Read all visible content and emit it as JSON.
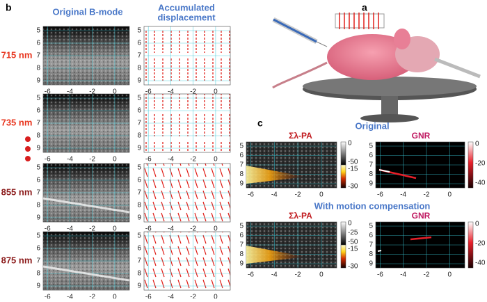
{
  "panel_b": {
    "label": "b",
    "bmode_title": "Original B-mode",
    "displacement_title": [
      "Accumulated",
      "displacement"
    ],
    "rows": [
      "715 nm",
      "735 nm",
      "855 nm",
      "875 nm"
    ],
    "xticks": [
      "-6",
      "-4",
      "-2",
      "0"
    ],
    "yticks": [
      "5",
      "6",
      "7",
      "8",
      "9"
    ]
  },
  "panel_a": {
    "label": "a"
  },
  "panel_c": {
    "label": "c",
    "sections": [
      {
        "title": "Original",
        "pa_title": "Σλ-PA",
        "gnr_title": "GNR",
        "pa_colorbar_gray": [
          "0",
          "-50"
        ],
        "pa_colorbar_hot": [
          "-15",
          "-30"
        ],
        "gnr_colorbar": [
          "0",
          "-20",
          "-40"
        ]
      },
      {
        "title": "With motion compensation",
        "pa_title": "Σλ-PA",
        "gnr_title": "GNR",
        "pa_colorbar_gray": [
          "0",
          "-25",
          "-50"
        ],
        "pa_colorbar_hot": [
          "-15",
          "-30"
        ],
        "gnr_colorbar": [
          "0",
          "-20",
          "-40"
        ]
      }
    ],
    "xticks": [
      "-6",
      "-4",
      "-2",
      "0"
    ],
    "yticks": [
      "5",
      "6",
      "7",
      "8",
      "9"
    ]
  }
}
